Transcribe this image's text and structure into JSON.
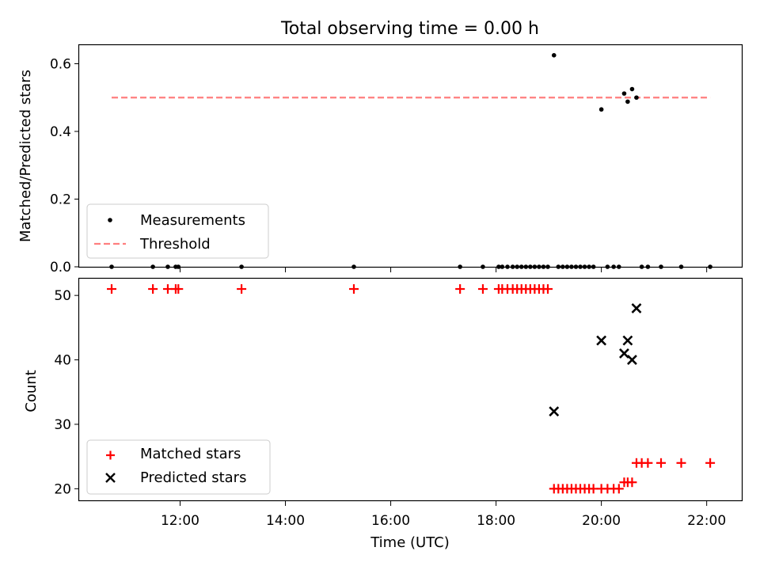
{
  "title": "Total observing time = 0.00 h",
  "xlabel": "Time (UTC)",
  "colors": {
    "measurement": "#000000",
    "threshold": "#ff7f7f",
    "matched": "#ff0000",
    "predicted": "#000000"
  },
  "chart_data": [
    {
      "type": "scatter",
      "title": "Total observing time = 0.00 h",
      "xlabel": "",
      "ylabel": "Matched/Predicted stars",
      "xlim": [
        "10:05",
        "22:40"
      ],
      "ylim": [
        0,
        0.655
      ],
      "yticks": [
        0.0,
        0.2,
        0.4,
        0.6
      ],
      "ytick_labels": [
        "0.0",
        "0.2",
        "0.4",
        "0.6"
      ],
      "legend_position": "lower-left",
      "series": [
        {
          "name": "Measurements",
          "marker": "dot",
          "points": [
            [
              "10:42",
              0
            ],
            [
              "11:29",
              0
            ],
            [
              "11:46",
              0
            ],
            [
              "11:55",
              0
            ],
            [
              "11:58",
              0
            ],
            [
              "13:10",
              0
            ],
            [
              "15:18",
              0
            ],
            [
              "17:19",
              0
            ],
            [
              "17:45",
              0
            ],
            [
              "18:03",
              0
            ],
            [
              "18:07",
              0
            ],
            [
              "18:13",
              0
            ],
            [
              "18:19",
              0
            ],
            [
              "18:24",
              0
            ],
            [
              "18:29",
              0
            ],
            [
              "18:34",
              0
            ],
            [
              "18:39",
              0
            ],
            [
              "18:44",
              0
            ],
            [
              "18:49",
              0
            ],
            [
              "18:54",
              0
            ],
            [
              "18:59",
              0
            ],
            [
              "19:06",
              "0.625"
            ],
            [
              "19:11",
              0
            ],
            [
              "19:16",
              0
            ],
            [
              "19:21",
              0
            ],
            [
              "19:26",
              0
            ],
            [
              "19:31",
              0
            ],
            [
              "19:36",
              0
            ],
            [
              "19:41",
              0
            ],
            [
              "19:46",
              0
            ],
            [
              "19:51",
              0
            ],
            [
              "20:00",
              0.465
            ],
            [
              "20:07",
              0
            ],
            [
              "20:14",
              0
            ],
            [
              "20:20",
              0
            ],
            [
              "20:26",
              0.512
            ],
            [
              "20:30",
              0.488
            ],
            [
              "20:35",
              0.525
            ],
            [
              "20:40",
              0.5
            ],
            [
              "20:46",
              0
            ],
            [
              "20:53",
              0
            ],
            [
              "21:08",
              0
            ],
            [
              "21:31",
              0
            ],
            [
              "22:04",
              0
            ]
          ]
        },
        {
          "name": "Threshold",
          "type": "line",
          "style": "dashed",
          "x": [
            "10:42",
            "22:04"
          ],
          "y": [
            0.5,
            0.5
          ]
        }
      ]
    },
    {
      "type": "scatter",
      "xlabel": "Time (UTC)",
      "ylabel": "Count",
      "xlim": [
        "10:05",
        "22:40"
      ],
      "ylim": [
        18.2,
        52.6
      ],
      "yticks": [
        20,
        30,
        40,
        50
      ],
      "ytick_labels": [
        "20",
        "30",
        "40",
        "50"
      ],
      "xticks": [
        "12:00",
        "14:00",
        "16:00",
        "18:00",
        "20:00",
        "22:00"
      ],
      "xtick_labels": [
        "12:00",
        "14:00",
        "16:00",
        "18:00",
        "20:00",
        "22:00"
      ],
      "legend_position": "lower-left",
      "series": [
        {
          "name": "Matched stars",
          "marker": "plus",
          "points": [
            [
              "10:42",
              51
            ],
            [
              "11:29",
              51
            ],
            [
              "11:46",
              51
            ],
            [
              "11:55",
              51
            ],
            [
              "11:58",
              51
            ],
            [
              "13:10",
              51
            ],
            [
              "15:18",
              51
            ],
            [
              "17:19",
              51
            ],
            [
              "17:45",
              51
            ],
            [
              "18:03",
              51
            ],
            [
              "18:07",
              51
            ],
            [
              "18:13",
              51
            ],
            [
              "18:19",
              51
            ],
            [
              "18:24",
              51
            ],
            [
              "18:29",
              51
            ],
            [
              "18:34",
              51
            ],
            [
              "18:39",
              51
            ],
            [
              "18:44",
              51
            ],
            [
              "18:49",
              51
            ],
            [
              "18:54",
              51
            ],
            [
              "18:59",
              51
            ],
            [
              "19:06",
              20
            ],
            [
              "19:11",
              20
            ],
            [
              "19:16",
              20
            ],
            [
              "19:21",
              20
            ],
            [
              "19:26",
              20
            ],
            [
              "19:31",
              20
            ],
            [
              "19:36",
              20
            ],
            [
              "19:41",
              20
            ],
            [
              "19:46",
              20
            ],
            [
              "19:51",
              20
            ],
            [
              "20:00",
              20
            ],
            [
              "20:07",
              20
            ],
            [
              "20:14",
              20
            ],
            [
              "20:20",
              20
            ],
            [
              "20:26",
              21
            ],
            [
              "20:30",
              21
            ],
            [
              "20:35",
              21
            ],
            [
              "20:40",
              24
            ],
            [
              "20:46",
              24
            ],
            [
              "20:53",
              24
            ],
            [
              "21:08",
              24
            ],
            [
              "21:31",
              24
            ],
            [
              "22:04",
              24
            ]
          ]
        },
        {
          "name": "Predicted stars",
          "marker": "x",
          "points": [
            [
              "19:06",
              32
            ],
            [
              "20:00",
              43
            ],
            [
              "20:26",
              41
            ],
            [
              "20:30",
              43
            ],
            [
              "20:35",
              40
            ],
            [
              "20:40",
              48
            ]
          ]
        }
      ]
    }
  ]
}
